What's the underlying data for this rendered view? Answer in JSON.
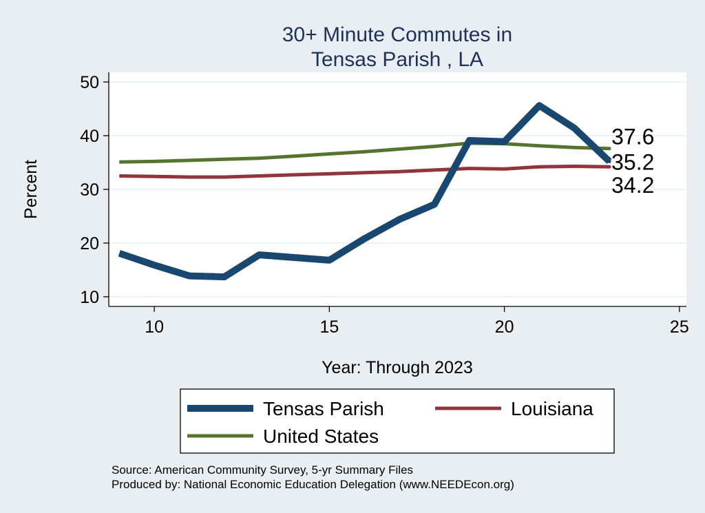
{
  "chart_data": {
    "type": "line",
    "title": [
      "30+ Minute Commutes in",
      "Tensas Parish , LA"
    ],
    "xlabel": "Year: Through 2023",
    "ylabel": "Percent",
    "xlim": [
      8.7,
      25.2
    ],
    "ylim": [
      8.2,
      51.8
    ],
    "xticks": [
      10,
      15,
      20,
      25
    ],
    "yticks": [
      10,
      20,
      30,
      40,
      50
    ],
    "grid": true,
    "x": [
      9,
      10,
      11,
      12,
      13,
      14,
      15,
      16,
      17,
      18,
      19,
      20,
      21,
      22,
      23
    ],
    "series": [
      {
        "name": "Tensas Parish",
        "color": "#1a476f",
        "values": [
          18.1,
          15.9,
          13.9,
          13.7,
          17.8,
          17.3,
          16.8,
          20.8,
          24.4,
          27.2,
          39.1,
          38.9,
          45.6,
          41.4,
          35.2
        ],
        "end_label": "35.2"
      },
      {
        "name": "Louisiana",
        "color": "#90353b",
        "values": [
          32.5,
          32.4,
          32.3,
          32.3,
          32.5,
          32.7,
          32.9,
          33.1,
          33.3,
          33.6,
          33.9,
          33.8,
          34.2,
          34.3,
          34.2
        ],
        "end_label": "34.2"
      },
      {
        "name": "United States",
        "color": "#55752f",
        "values": [
          35.1,
          35.2,
          35.4,
          35.6,
          35.8,
          36.2,
          36.6,
          37.0,
          37.5,
          38.0,
          38.6,
          38.5,
          38.1,
          37.8,
          37.6
        ],
        "end_label": "37.6"
      }
    ],
    "legend": [
      "Tensas Parish",
      "Louisiana",
      "United States"
    ],
    "source_lines": [
      "Source: American Community Survey, 5-yr Summary Files",
      "Produced by: National Economic Education Delegation (www.NEEDEcon.org)"
    ]
  }
}
